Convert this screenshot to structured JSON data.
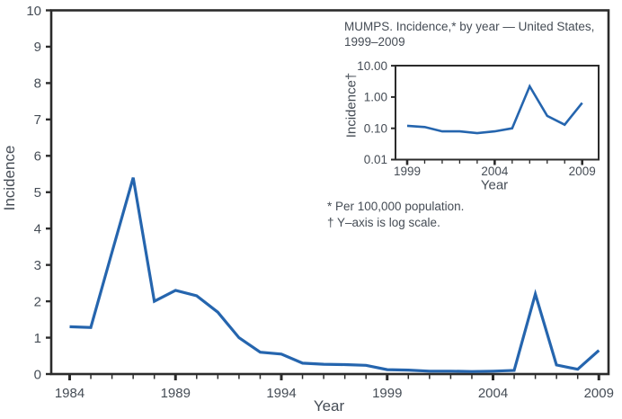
{
  "colors": {
    "line": "#2565AE",
    "axis": "#2B2B2B",
    "text": "#454C55"
  },
  "chart_data": [
    {
      "type": "line",
      "id": "main",
      "title": "",
      "xlabel": "Year",
      "ylabel": "Incidence",
      "scale": "linear",
      "x": [
        1984,
        1985,
        1986,
        1987,
        1988,
        1989,
        1990,
        1991,
        1992,
        1993,
        1994,
        1995,
        1996,
        1997,
        1998,
        1999,
        2000,
        2001,
        2002,
        2003,
        2004,
        2005,
        2006,
        2007,
        2008,
        2009
      ],
      "values": [
        1.3,
        1.28,
        3.35,
        5.4,
        2.0,
        2.3,
        2.15,
        1.7,
        1.0,
        0.6,
        0.55,
        0.3,
        0.27,
        0.26,
        0.24,
        0.12,
        0.11,
        0.08,
        0.08,
        0.07,
        0.08,
        0.1,
        2.2,
        0.25,
        0.13,
        0.65
      ],
      "ylim": [
        0,
        10
      ],
      "yticks": [
        0,
        1,
        2,
        3,
        4,
        5,
        6,
        7,
        8,
        9,
        10
      ],
      "ytick_labels": [
        "0",
        "1",
        "2",
        "3",
        "4",
        "5",
        "6",
        "7",
        "8",
        "9",
        "10"
      ],
      "xticks_labeled": [
        1984,
        1989,
        1994,
        1999,
        2004,
        2009
      ],
      "grid": false,
      "legend": "none"
    },
    {
      "type": "line",
      "id": "inset",
      "title_line1": "MUMPS. Incidence,* by year — United States,",
      "title_line2": "1999–2009",
      "xlabel": "Year",
      "ylabel": "Incidence†",
      "footnote_star": "* Per 100,000 population.",
      "footnote_dagger": "† Y–axis is log scale.",
      "scale": "log",
      "x": [
        1999,
        2000,
        2001,
        2002,
        2003,
        2004,
        2005,
        2006,
        2007,
        2008,
        2009
      ],
      "values": [
        0.12,
        0.11,
        0.08,
        0.08,
        0.07,
        0.08,
        0.1,
        2.2,
        0.25,
        0.13,
        0.65
      ],
      "ylim": [
        0.01,
        10
      ],
      "yticks": [
        10,
        1,
        0.1,
        0.01
      ],
      "ytick_labels": [
        "10.00",
        "1.00",
        "0.10",
        "0.01"
      ],
      "xticks_labeled": [
        1999,
        2004,
        2009
      ],
      "grid": false,
      "legend": "none"
    }
  ]
}
